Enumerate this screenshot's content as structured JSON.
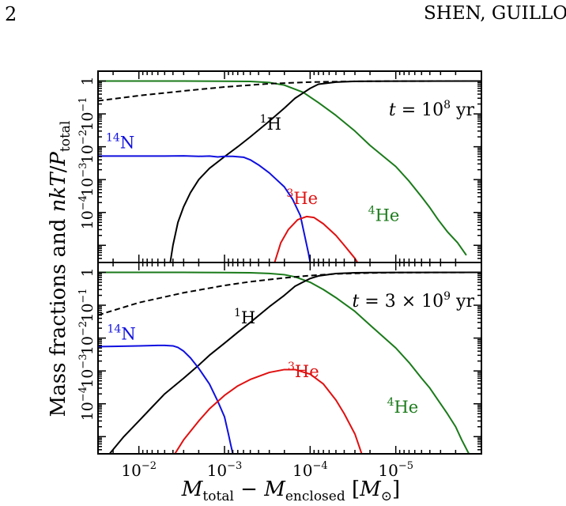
{
  "page": {
    "page_number": "2",
    "running_head": "SHEN, GUILLO"
  },
  "figure": {
    "ylabel_parts": [
      "Mass fractions and ",
      "nkT",
      "/",
      "P",
      "total"
    ],
    "xlabel_parts": [
      "M",
      "total",
      " − ",
      "M",
      "enclosed",
      " [",
      "M",
      "⊙",
      "]"
    ]
  },
  "chart_data": [
    {
      "type": "line",
      "panel": "top",
      "x_scale": "log",
      "x_reversed": true,
      "y_scale": "log",
      "xlim": [
        0.03,
        1e-06
      ],
      "ylim": [
        3e-06,
        2
      ],
      "x_ticks": [
        {
          "value": 0.01,
          "base": "10",
          "exp": "−2"
        },
        {
          "value": 0.001,
          "base": "10",
          "exp": "−3"
        },
        {
          "value": 0.0001,
          "base": "10",
          "exp": "−4"
        },
        {
          "value": 1e-05,
          "base": "10",
          "exp": "−5"
        }
      ],
      "y_ticks": [
        {
          "value": 1,
          "text": "1"
        },
        {
          "value": 0.1,
          "base": "10",
          "exp": "−1"
        },
        {
          "value": 0.01,
          "base": "10",
          "exp": "−2"
        },
        {
          "value": 0.001,
          "base": "10",
          "exp": "−3"
        },
        {
          "value": 0.0001,
          "base": "10",
          "exp": "−4"
        }
      ],
      "annotation": {
        "lhs": "t",
        "eq": " = 10",
        "exp": "8",
        "unit": " yr"
      },
      "series": [
        {
          "id": "he4",
          "name": "He",
          "mass_number": "4",
          "color": "#1a7a1a",
          "dash": false,
          "points": [
            [
              0.03,
              1.0
            ],
            [
              0.01,
              1.0
            ],
            [
              0.003,
              1.0
            ],
            [
              0.001,
              0.99
            ],
            [
              0.0005,
              0.97
            ],
            [
              0.0003,
              0.9
            ],
            [
              0.0002,
              0.75
            ],
            [
              0.00012,
              0.45
            ],
            [
              8e-05,
              0.22
            ],
            [
              5e-05,
              0.09
            ],
            [
              3e-05,
              0.03
            ],
            [
              2e-05,
              0.011
            ],
            [
              1e-05,
              0.0025
            ],
            [
              7e-06,
              0.0009
            ],
            [
              5e-06,
              0.0003
            ],
            [
              4e-06,
              0.00014
            ],
            [
              3.2e-06,
              6e-05
            ],
            [
              2.5e-06,
              2.6e-05
            ],
            [
              1.9e-06,
              1.2e-05
            ],
            [
              1.5e-06,
              5e-06
            ]
          ]
        },
        {
          "id": "h1",
          "name": "H",
          "mass_number": "1",
          "color": "#000000",
          "dash": false,
          "points": [
            [
              0.0043,
              3e-06
            ],
            [
              0.004,
              1e-05
            ],
            [
              0.0035,
              5e-05
            ],
            [
              0.003,
              0.00015
            ],
            [
              0.0025,
              0.0004
            ],
            [
              0.002,
              0.001
            ],
            [
              0.0015,
              0.0022
            ],
            [
              0.001,
              0.005
            ],
            [
              0.0007,
              0.01
            ],
            [
              0.0005,
              0.02
            ],
            [
              0.0003,
              0.06
            ],
            [
              0.0002,
              0.15
            ],
            [
              0.00015,
              0.3
            ],
            [
              0.0001,
              0.6
            ],
            [
              8e-05,
              0.8
            ],
            [
              5e-05,
              0.93
            ],
            [
              3e-05,
              0.98
            ],
            [
              2e-05,
              0.99
            ],
            [
              1e-06,
              1.0
            ]
          ]
        },
        {
          "id": "n14",
          "name": "N",
          "mass_number": "14",
          "color": "#1010e0",
          "dash": false,
          "points": [
            [
              0.03,
              0.0052
            ],
            [
              0.01,
              0.0052
            ],
            [
              0.005,
              0.0052
            ],
            [
              0.003,
              0.0053
            ],
            [
              0.002,
              0.0051
            ],
            [
              0.0015,
              0.0052
            ],
            [
              0.0012,
              0.0049
            ],
            [
              0.001,
              0.0051
            ],
            [
              0.0008,
              0.0051
            ],
            [
              0.0006,
              0.0048
            ],
            [
              0.0005,
              0.004
            ],
            [
              0.0004,
              0.0028
            ],
            [
              0.0003,
              0.0016
            ],
            [
              0.0002,
              0.0006
            ],
            [
              0.00016,
              0.00025
            ],
            [
              0.00013,
              8e-05
            ],
            [
              0.00012,
              3e-05
            ],
            [
              0.000105,
              6e-06
            ],
            [
              0.0001,
              3e-06
            ]
          ]
        },
        {
          "id": "he3",
          "name": "He",
          "mass_number": "3",
          "color": "#e01010",
          "dash": false,
          "points": [
            [
              0.00026,
              3e-06
            ],
            [
              0.00022,
              1.2e-05
            ],
            [
              0.00018,
              3e-05
            ],
            [
              0.00014,
              6e-05
            ],
            [
              0.00011,
              7.5e-05
            ],
            [
              9e-05,
              7e-05
            ],
            [
              7e-05,
              4.5e-05
            ],
            [
              5e-05,
              2e-05
            ],
            [
              4e-05,
              1e-05
            ],
            [
              3e-05,
              4e-06
            ],
            [
              2.8e-05,
              3e-06
            ]
          ]
        },
        {
          "id": "nkt",
          "name": "",
          "color": "#000000",
          "dash": true,
          "points": [
            [
              0.03,
              0.25
            ],
            [
              0.01,
              0.36
            ],
            [
              0.003,
              0.5
            ],
            [
              0.001,
              0.66
            ],
            [
              0.0003,
              0.83
            ],
            [
              0.0001,
              0.93
            ],
            [
              3e-05,
              0.98
            ],
            [
              1e-05,
              0.995
            ],
            [
              1e-06,
              1.0
            ]
          ]
        }
      ],
      "series_labels": [
        {
          "series": "h1",
          "x": 0.00029,
          "y": 0.033
        },
        {
          "series": "n14",
          "x": 0.0165,
          "y": 0.009
        },
        {
          "series": "he3",
          "x": 0.000124,
          "y": 0.00018
        },
        {
          "series": "he4",
          "x": 1.38e-05,
          "y": 5.5e-05
        }
      ]
    },
    {
      "type": "line",
      "panel": "bottom",
      "x_scale": "log",
      "x_reversed": true,
      "y_scale": "log",
      "xlim": [
        0.03,
        1e-06
      ],
      "ylim": [
        3e-06,
        2
      ],
      "x_ticks": [
        {
          "value": 0.01,
          "base": "10",
          "exp": "−2"
        },
        {
          "value": 0.001,
          "base": "10",
          "exp": "−3"
        },
        {
          "value": 0.0001,
          "base": "10",
          "exp": "−4"
        },
        {
          "value": 1e-05,
          "base": "10",
          "exp": "−5"
        }
      ],
      "y_ticks": [
        {
          "value": 1,
          "text": "1"
        },
        {
          "value": 0.1,
          "base": "10",
          "exp": "−1"
        },
        {
          "value": 0.01,
          "base": "10",
          "exp": "−2"
        },
        {
          "value": 0.001,
          "base": "10",
          "exp": "−3"
        },
        {
          "value": 0.0001,
          "base": "10",
          "exp": "−4"
        }
      ],
      "annotation": {
        "lhs": "t",
        "eq": " = 3 × 10",
        "exp": "9",
        "unit": " yr"
      },
      "series": [
        {
          "id": "he4",
          "name": "He",
          "mass_number": "4",
          "color": "#1a7a1a",
          "dash": false,
          "points": [
            [
              0.03,
              1.0
            ],
            [
              0.01,
              1.0
            ],
            [
              0.003,
              1.0
            ],
            [
              0.001,
              0.99
            ],
            [
              0.0005,
              0.97
            ],
            [
              0.0003,
              0.93
            ],
            [
              0.0002,
              0.85
            ],
            [
              0.00015,
              0.73
            ],
            [
              0.0001,
              0.5
            ],
            [
              7e-05,
              0.3
            ],
            [
              5e-05,
              0.17
            ],
            [
              3e-05,
              0.065
            ],
            [
              2e-05,
              0.025
            ],
            [
              1e-05,
              0.005
            ],
            [
              7e-06,
              0.0018
            ],
            [
              5e-06,
              0.0006
            ],
            [
              4e-06,
              0.0003
            ],
            [
              3e-06,
              0.0001
            ],
            [
              2.5e-06,
              5e-05
            ],
            [
              2e-06,
              2e-05
            ],
            [
              1.7e-06,
              8e-06
            ],
            [
              1.4e-06,
              3e-06
            ]
          ]
        },
        {
          "id": "h1",
          "name": "H",
          "mass_number": "1",
          "color": "#000000",
          "dash": false,
          "points": [
            [
              0.022,
              3e-06
            ],
            [
              0.015,
              1e-05
            ],
            [
              0.01,
              3e-05
            ],
            [
              0.007,
              8e-05
            ],
            [
              0.005,
              0.0002
            ],
            [
              0.003,
              0.0006
            ],
            [
              0.002,
              0.0015
            ],
            [
              0.0015,
              0.003
            ],
            [
              0.001,
              0.007
            ],
            [
              0.0007,
              0.015
            ],
            [
              0.0005,
              0.03
            ],
            [
              0.0003,
              0.09
            ],
            [
              0.0002,
              0.2
            ],
            [
              0.00015,
              0.38
            ],
            [
              0.0001,
              0.65
            ],
            [
              8e-05,
              0.78
            ],
            [
              5e-05,
              0.92
            ],
            [
              3e-05,
              0.97
            ],
            [
              2e-05,
              0.99
            ],
            [
              1e-06,
              1.0
            ]
          ]
        },
        {
          "id": "n14",
          "name": "N",
          "mass_number": "14",
          "color": "#1010e0",
          "dash": false,
          "points": [
            [
              0.03,
              0.0055
            ],
            [
              0.02,
              0.0056
            ],
            [
              0.01,
              0.0058
            ],
            [
              0.006,
              0.006
            ],
            [
              0.005,
              0.006
            ],
            [
              0.004,
              0.0058
            ],
            [
              0.0035,
              0.0052
            ],
            [
              0.003,
              0.004
            ],
            [
              0.0025,
              0.0025
            ],
            [
              0.002,
              0.0012
            ],
            [
              0.0015,
              0.0004
            ],
            [
              0.0012,
              0.00012
            ],
            [
              0.001,
              4e-05
            ],
            [
              0.0009,
              1.2e-05
            ],
            [
              0.00085,
              6e-06
            ],
            [
              0.0008,
              3e-06
            ]
          ]
        },
        {
          "id": "he3",
          "name": "He",
          "mass_number": "3",
          "color": "#e01010",
          "dash": false,
          "points": [
            [
              0.0038,
              3e-06
            ],
            [
              0.003,
              8e-06
            ],
            [
              0.002,
              3e-05
            ],
            [
              0.0015,
              7e-05
            ],
            [
              0.001,
              0.00018
            ],
            [
              0.0007,
              0.00035
            ],
            [
              0.0005,
              0.00055
            ],
            [
              0.0003,
              0.0009
            ],
            [
              0.0002,
              0.0011
            ],
            [
              0.00015,
              0.0011
            ],
            [
              0.0001,
              0.0008
            ],
            [
              7e-05,
              0.0004
            ],
            [
              5e-05,
              0.00013
            ],
            [
              4e-05,
              5e-05
            ],
            [
              3e-05,
              1.2e-05
            ],
            [
              2.5e-05,
              3e-06
            ]
          ]
        },
        {
          "id": "nkt",
          "name": "",
          "color": "#000000",
          "dash": true,
          "points": [
            [
              0.03,
              0.05
            ],
            [
              0.01,
              0.12
            ],
            [
              0.003,
              0.24
            ],
            [
              0.001,
              0.4
            ],
            [
              0.0005,
              0.52
            ],
            [
              0.0002,
              0.68
            ],
            [
              0.0001,
              0.8
            ],
            [
              5e-05,
              0.9
            ],
            [
              2e-05,
              0.96
            ],
            [
              1e-05,
              0.985
            ],
            [
              1e-06,
              1.0
            ]
          ]
        }
      ],
      "series_labels": [
        {
          "series": "h1",
          "x": 0.00058,
          "y": 0.028
        },
        {
          "series": "n14",
          "x": 0.016,
          "y": 0.009
        },
        {
          "series": "he3",
          "x": 0.00012,
          "y": 0.00065
        },
        {
          "series": "he4",
          "x": 8.3e-06,
          "y": 5.3e-05
        }
      ]
    }
  ]
}
